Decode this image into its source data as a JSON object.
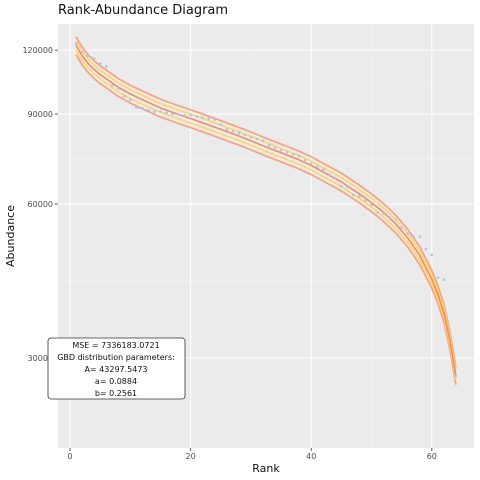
{
  "chart_data": {
    "type": "scatter",
    "title": "Rank-Abundance Diagram",
    "xlabel": "Rank",
    "ylabel": "Abundance",
    "xlim": [
      -2,
      67
    ],
    "ylim": [
      20000,
      135000
    ],
    "y_scale": "log",
    "x_ticks": [
      0,
      20,
      40,
      60
    ],
    "y_ticks": [
      30000,
      60000,
      90000,
      120000
    ],
    "grid": true,
    "background": "#ebebeb",
    "point_color": "#a9c4ec",
    "band_colors": [
      "#f4a582",
      "#fdd36a",
      "#f4a582"
    ],
    "curve_color": "#f08a6a",
    "annotation": {
      "lines": [
        "MSE = 7336183.0721",
        "GBD distribution parameters:",
        "A= 43297.5473",
        "a= 0.0884",
        "b= 0.2561"
      ]
    },
    "series": [
      {
        "type": "points",
        "x": [
          1,
          2,
          3,
          4,
          5,
          6,
          7,
          8,
          9,
          10,
          11,
          12,
          13,
          14,
          15,
          16,
          17,
          18,
          19,
          20,
          21,
          22,
          23,
          24,
          25,
          26,
          27,
          28,
          29,
          30,
          31,
          32,
          33,
          34,
          35,
          36,
          37,
          38,
          39,
          40,
          41,
          42,
          43,
          44,
          45,
          46,
          47,
          48,
          49,
          50,
          51,
          52,
          53,
          54,
          55,
          56,
          57,
          58,
          59,
          60,
          61,
          62,
          63,
          64
        ],
        "y": [
          123500,
          119000,
          117000,
          115500,
          113000,
          111500,
          102500,
          101000,
          97500,
          96000,
          92700,
          92300,
          91500,
          91000,
          91000,
          90500,
          90000,
          89800,
          89500,
          89500,
          89000,
          88500,
          88200,
          87800,
          85800,
          84000,
          83200,
          82500,
          82000,
          81000,
          80500,
          79800,
          78200,
          77300,
          76500,
          75800,
          75000,
          74500,
          73200,
          72000,
          71000,
          70000,
          68500,
          67500,
          65000,
          64800,
          62500,
          62200,
          61000,
          59800,
          57800,
          57500,
          56500,
          56000,
          54000,
          52500,
          51800,
          51800,
          49000,
          47700,
          43100,
          42700,
          null,
          27700
        ]
      },
      {
        "type": "curve",
        "x": [
          1,
          2,
          3,
          4,
          5,
          6,
          8,
          10,
          12,
          15,
          18,
          20,
          22,
          25,
          28,
          30,
          32,
          35,
          38,
          40,
          42,
          45,
          48,
          50,
          52,
          54,
          56,
          58,
          60,
          61,
          62,
          63,
          64
        ],
        "y": [
          122500,
          117000,
          113000,
          110000,
          107500,
          105500,
          101500,
          98500,
          96000,
          92500,
          89800,
          88200,
          86500,
          84000,
          81500,
          79800,
          78000,
          75600,
          73200,
          71400,
          69300,
          66300,
          62800,
          60400,
          57800,
          54900,
          51500,
          47600,
          42800,
          40000,
          36800,
          32500,
          27700
        ]
      },
      {
        "type": "band_outer",
        "offset_ratio": 0.04
      },
      {
        "type": "band_inner",
        "offset_ratio": 0.02
      }
    ]
  }
}
